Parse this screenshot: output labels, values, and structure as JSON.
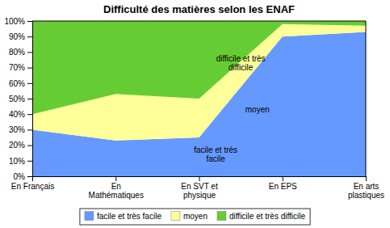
{
  "chart_data": {
    "type": "area",
    "stacked": true,
    "title": "Difficulté des matières selon les ENAF",
    "categories": [
      "En Français",
      "En\nMathématiques",
      "En SVT et\nphysique",
      "En EPS",
      "En arts\nplastiques"
    ],
    "series": [
      {
        "name": "facile et très facile",
        "color": "#6699ff",
        "values": [
          30,
          23,
          25,
          90,
          93
        ]
      },
      {
        "name": "moyen",
        "color": "#ffff99",
        "values": [
          10,
          30,
          25,
          8,
          4
        ]
      },
      {
        "name": "difficile et très difficile",
        "color": "#66cc33",
        "values": [
          60,
          47,
          50,
          2,
          3
        ]
      }
    ],
    "ylim": [
      0,
      100
    ],
    "yticks": [
      {
        "value": 0,
        "label": "0%"
      },
      {
        "value": 10,
        "label": "10%"
      },
      {
        "value": 20,
        "label": "20%"
      },
      {
        "value": 30,
        "label": "30%"
      },
      {
        "value": 40,
        "label": "40%"
      },
      {
        "value": 50,
        "label": "50%"
      },
      {
        "value": 60,
        "label": "60%"
      },
      {
        "value": 70,
        "label": "70%"
      },
      {
        "value": 80,
        "label": "80%"
      },
      {
        "value": 90,
        "label": "90%"
      },
      {
        "value": 100,
        "label": "100%"
      }
    ],
    "annotations": [
      {
        "text": "difficile et très\ndifficile",
        "x": 2.5,
        "y": 73
      },
      {
        "text": "moyen",
        "x": 2.7,
        "y": 43
      },
      {
        "text": "facile et très\nfacile",
        "x": 2.2,
        "y": 14
      }
    ],
    "grid": false,
    "legend": "bottom"
  }
}
